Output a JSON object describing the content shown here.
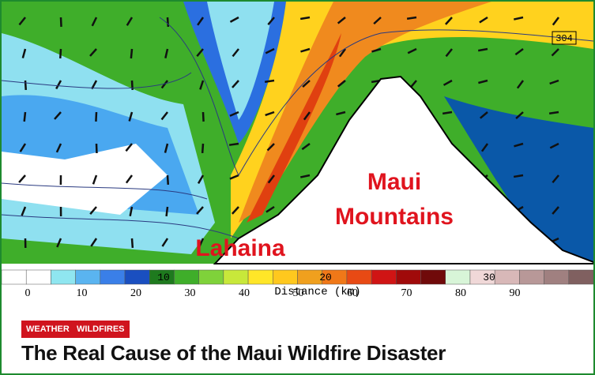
{
  "figure": {
    "box_label": "304",
    "mountain_label": [
      "Maui",
      "Mountains"
    ],
    "town_label": "Lahaina",
    "axis_title": "Distance (km)",
    "axis_ticks": [
      "10",
      "20",
      "30"
    ],
    "colorbar_labels": [
      "0",
      "10",
      "20",
      "30",
      "40",
      "50",
      "60",
      "70",
      "80",
      "90"
    ]
  },
  "tags": [
    "WEATHER",
    "WILDFIRES"
  ],
  "title": "The Real Cause of the Maui Wildfire Disaster"
}
